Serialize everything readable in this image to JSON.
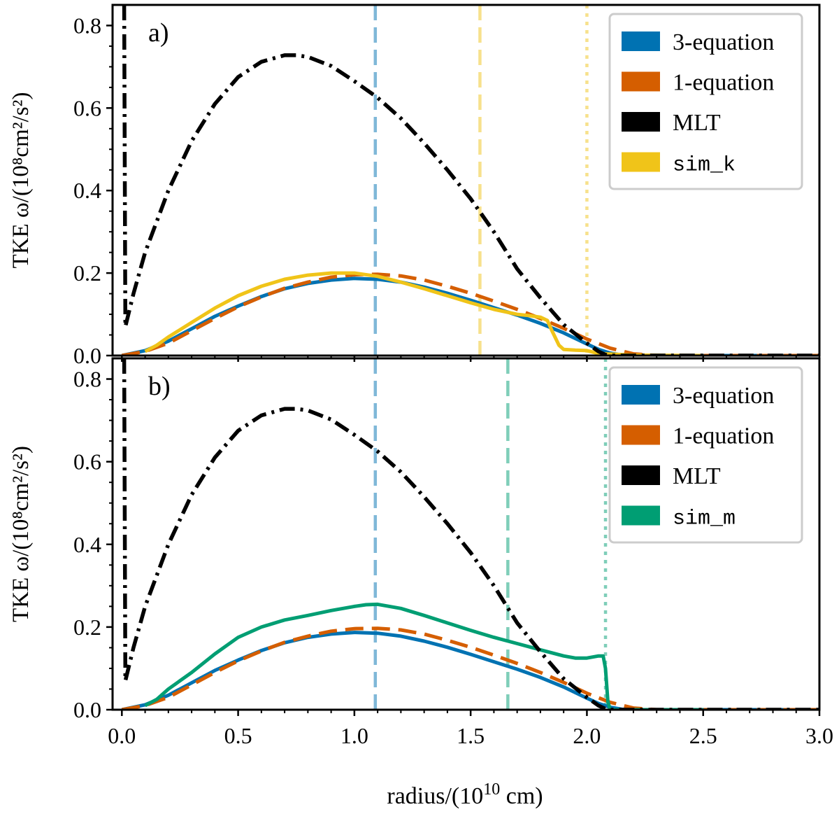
{
  "chart_data": [
    {
      "type": "line",
      "panel_label": "a)",
      "xlabel": "radius/(10",
      "xlabel_exp": "10",
      "xlabel_unit": " cm)",
      "ylabel": "TKE ω/(10⁸cm²/s²)",
      "xlim": [
        -0.04,
        3.0
      ],
      "ylim": [
        0.0,
        0.85
      ],
      "xticks": [
        "0.0",
        "0.5",
        "1.0",
        "1.5",
        "2.0",
        "2.5",
        "3.0"
      ],
      "yticks": [
        "0.0",
        "0.2",
        "0.4",
        "0.6",
        "0.8"
      ],
      "series": [
        {
          "name": "3-equation",
          "color": "#0072b2",
          "dash": "solid",
          "x": [
            0.0,
            0.1,
            0.2,
            0.3,
            0.4,
            0.5,
            0.6,
            0.7,
            0.8,
            0.9,
            1.0,
            1.1,
            1.2,
            1.3,
            1.4,
            1.5,
            1.6,
            1.7,
            1.8,
            1.9,
            2.0,
            2.05,
            2.1,
            2.15,
            2.2,
            3.0
          ],
          "y": [
            0.0,
            0.012,
            0.035,
            0.065,
            0.095,
            0.12,
            0.143,
            0.162,
            0.175,
            0.183,
            0.187,
            0.185,
            0.178,
            0.166,
            0.151,
            0.134,
            0.116,
            0.098,
            0.078,
            0.055,
            0.028,
            0.015,
            0.006,
            0.001,
            0.0,
            0.0
          ]
        },
        {
          "name": "1-equation",
          "color": "#d55e00",
          "dash": "dashed",
          "x": [
            0.0,
            0.1,
            0.2,
            0.3,
            0.4,
            0.5,
            0.6,
            0.7,
            0.8,
            0.9,
            1.0,
            1.1,
            1.2,
            1.3,
            1.4,
            1.5,
            1.6,
            1.7,
            1.8,
            1.9,
            2.0,
            2.1,
            2.2,
            2.3,
            3.0
          ],
          "y": [
            0.0,
            0.01,
            0.03,
            0.06,
            0.09,
            0.118,
            0.142,
            0.163,
            0.178,
            0.19,
            0.196,
            0.197,
            0.193,
            0.183,
            0.168,
            0.151,
            0.132,
            0.112,
            0.09,
            0.066,
            0.04,
            0.018,
            0.004,
            0.0,
            0.0
          ]
        },
        {
          "name": "MLT",
          "color": "#000000",
          "dash": "dashdot",
          "x": [
            0.01,
            0.015,
            0.05,
            0.1,
            0.2,
            0.3,
            0.4,
            0.5,
            0.6,
            0.7,
            0.75,
            0.8,
            0.9,
            1.0,
            1.1,
            1.2,
            1.3,
            1.4,
            1.5,
            1.6,
            1.7,
            1.8,
            1.9,
            2.0,
            2.05,
            2.08,
            2.1,
            2.2,
            2.5,
            3.0
          ],
          "y": [
            0.85,
            0.07,
            0.15,
            0.25,
            0.4,
            0.52,
            0.61,
            0.675,
            0.712,
            0.728,
            0.728,
            0.724,
            0.702,
            0.665,
            0.625,
            0.575,
            0.515,
            0.45,
            0.38,
            0.3,
            0.21,
            0.14,
            0.075,
            0.03,
            0.01,
            0.002,
            0.0,
            0.0,
            0.0,
            0.0
          ]
        },
        {
          "name": "sim_k",
          "color": "#f0c419",
          "dash": "solid",
          "x": [
            0.1,
            0.15,
            0.2,
            0.3,
            0.4,
            0.5,
            0.6,
            0.7,
            0.8,
            0.9,
            1.0,
            1.1,
            1.2,
            1.3,
            1.4,
            1.5,
            1.6,
            1.7,
            1.75,
            1.8,
            1.83,
            1.85,
            1.88,
            1.9,
            1.95,
            2.0,
            2.05,
            2.2,
            2.5
          ],
          "y": [
            0.01,
            0.025,
            0.045,
            0.08,
            0.115,
            0.145,
            0.168,
            0.185,
            0.195,
            0.2,
            0.2,
            0.192,
            0.178,
            0.162,
            0.145,
            0.128,
            0.112,
            0.1,
            0.097,
            0.093,
            0.085,
            0.06,
            0.025,
            0.015,
            0.013,
            0.012,
            0.005,
            0.001,
            0.0
          ]
        }
      ],
      "vlines": [
        {
          "x": 1.09,
          "color": "#0072b2",
          "style": "dashed"
        },
        {
          "x": 1.54,
          "color": "#f0c419",
          "style": "dashed"
        },
        {
          "x": 2.0,
          "color": "#f0c419",
          "style": "dotted"
        }
      ],
      "legend": {
        "position": "top-right",
        "entries": [
          "3-equation",
          "1-equation",
          "MLT",
          "sim_k"
        ],
        "mono": [
          false,
          false,
          false,
          true
        ]
      }
    },
    {
      "type": "line",
      "panel_label": "b)",
      "xlabel": "radius/(10",
      "xlabel_exp": "10",
      "xlabel_unit": " cm)",
      "ylabel": "TKE ω/(10⁸cm²/s²)",
      "xlim": [
        -0.04,
        3.0
      ],
      "ylim": [
        0.0,
        0.85
      ],
      "xticks": [
        "0.0",
        "0.5",
        "1.0",
        "1.5",
        "2.0",
        "2.5",
        "3.0"
      ],
      "yticks": [
        "0.0",
        "0.2",
        "0.4",
        "0.6",
        "0.8"
      ],
      "series": [
        {
          "name": "3-equation",
          "color": "#0072b2",
          "dash": "solid",
          "x": [
            0.0,
            0.1,
            0.2,
            0.3,
            0.4,
            0.5,
            0.6,
            0.7,
            0.8,
            0.9,
            1.0,
            1.1,
            1.2,
            1.3,
            1.4,
            1.5,
            1.6,
            1.7,
            1.8,
            1.9,
            2.0,
            2.05,
            2.1,
            2.15,
            2.2,
            3.0
          ],
          "y": [
            0.0,
            0.012,
            0.035,
            0.065,
            0.095,
            0.12,
            0.143,
            0.162,
            0.175,
            0.183,
            0.187,
            0.185,
            0.178,
            0.166,
            0.151,
            0.134,
            0.116,
            0.098,
            0.078,
            0.055,
            0.028,
            0.015,
            0.006,
            0.001,
            0.0,
            0.0
          ]
        },
        {
          "name": "1-equation",
          "color": "#d55e00",
          "dash": "dashed",
          "x": [
            0.0,
            0.1,
            0.2,
            0.3,
            0.4,
            0.5,
            0.6,
            0.7,
            0.8,
            0.9,
            1.0,
            1.1,
            1.2,
            1.3,
            1.4,
            1.5,
            1.6,
            1.7,
            1.8,
            1.9,
            2.0,
            2.1,
            2.2,
            2.3,
            3.0
          ],
          "y": [
            0.0,
            0.01,
            0.03,
            0.06,
            0.09,
            0.118,
            0.142,
            0.163,
            0.178,
            0.19,
            0.196,
            0.197,
            0.193,
            0.183,
            0.168,
            0.151,
            0.132,
            0.112,
            0.09,
            0.066,
            0.04,
            0.018,
            0.004,
            0.0,
            0.0
          ]
        },
        {
          "name": "MLT",
          "color": "#000000",
          "dash": "dashdot",
          "x": [
            0.01,
            0.015,
            0.05,
            0.1,
            0.2,
            0.3,
            0.4,
            0.5,
            0.6,
            0.7,
            0.75,
            0.8,
            0.9,
            1.0,
            1.1,
            1.2,
            1.3,
            1.4,
            1.5,
            1.6,
            1.7,
            1.8,
            1.9,
            2.0,
            2.05,
            2.08,
            2.1,
            2.2,
            2.5,
            3.0
          ],
          "y": [
            0.85,
            0.07,
            0.15,
            0.25,
            0.4,
            0.52,
            0.61,
            0.675,
            0.712,
            0.728,
            0.728,
            0.724,
            0.702,
            0.665,
            0.625,
            0.575,
            0.515,
            0.45,
            0.38,
            0.3,
            0.21,
            0.14,
            0.075,
            0.03,
            0.01,
            0.002,
            0.0,
            0.0,
            0.0,
            0.0
          ]
        },
        {
          "name": "sim_m",
          "color": "#009e73",
          "dash": "solid",
          "x": [
            0.1,
            0.15,
            0.2,
            0.3,
            0.4,
            0.5,
            0.6,
            0.7,
            0.8,
            0.9,
            1.0,
            1.05,
            1.1,
            1.2,
            1.3,
            1.4,
            1.5,
            1.6,
            1.7,
            1.8,
            1.9,
            1.95,
            2.0,
            2.05,
            2.07,
            2.08,
            2.09,
            2.1,
            2.2,
            2.5
          ],
          "y": [
            0.01,
            0.025,
            0.05,
            0.09,
            0.135,
            0.175,
            0.2,
            0.217,
            0.228,
            0.24,
            0.25,
            0.254,
            0.255,
            0.245,
            0.228,
            0.21,
            0.192,
            0.175,
            0.16,
            0.145,
            0.13,
            0.125,
            0.125,
            0.13,
            0.13,
            0.1,
            0.02,
            0.0,
            0.0,
            0.0
          ]
        }
      ],
      "vlines": [
        {
          "x": 1.09,
          "color": "#0072b2",
          "style": "dashed"
        },
        {
          "x": 1.66,
          "color": "#009e73",
          "style": "dashed"
        },
        {
          "x": 2.08,
          "color": "#009e73",
          "style": "dotted"
        }
      ],
      "legend": {
        "position": "top-right",
        "entries": [
          "3-equation",
          "1-equation",
          "MLT",
          "sim_m"
        ],
        "mono": [
          false,
          false,
          false,
          true
        ]
      }
    }
  ]
}
